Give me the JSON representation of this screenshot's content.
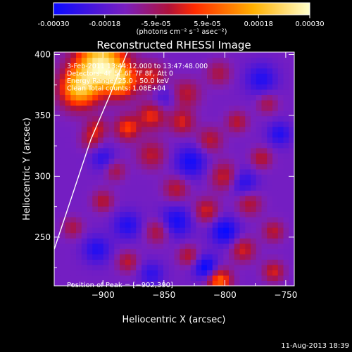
{
  "colorbar": {
    "tick_labels": [
      "-0.00030",
      "-0.00018",
      "-5.9e-05",
      "5.9e-05",
      "0.00018",
      "0.00030"
    ],
    "unit_label": "(photons cm⁻² s⁻¹ asec⁻²)",
    "range": [
      -0.0003,
      0.0003
    ],
    "colors": [
      "#0a0aff",
      "#7a1fbf",
      "#b0123a",
      "#ff2a00",
      "#ffb000",
      "#ffffcc"
    ]
  },
  "chart_data": {
    "type": "heatmap",
    "title": "Reconstructed RHESSI Image",
    "xlabel": "Heliocentric X (arcsec)",
    "ylabel": "Heliocentric Y (arcsec)",
    "xlim": [
      -940,
      -743
    ],
    "ylim": [
      210,
      402
    ],
    "x_ticks": [
      -900,
      -850,
      -800,
      -750
    ],
    "x_tick_labels": [
      "−900",
      "−850",
      "−800",
      "−750"
    ],
    "y_ticks": [
      250,
      300,
      350,
      400
    ],
    "y_tick_labels": [
      "250",
      "300",
      "350",
      "400"
    ],
    "annotations": [
      "3-Feb-2011 13:44:12.000 to 13:47:48.000",
      "Detectors: 4F 5F 6F 7F 8F, Att 0",
      "Energy Range: 25.0 - 50.0 keV",
      "Clean    Total counts: 1.08E+04"
    ],
    "peak_label": "Position of Peak = [−902,390]",
    "peak_position": [
      -902,
      390
    ],
    "limb_line": [
      [
        -940,
        240
      ],
      [
        -925,
        285
      ],
      [
        -910,
        330
      ],
      [
        -895,
        365
      ],
      [
        -880,
        402
      ]
    ],
    "blobs": [
      {
        "x": -902,
        "y": 392,
        "v": 1.0,
        "s": 14
      },
      {
        "x": -920,
        "y": 372,
        "v": 0.75,
        "s": 11
      },
      {
        "x": -885,
        "y": 378,
        "v": 0.6,
        "s": 9
      },
      {
        "x": -860,
        "y": 382,
        "v": 0.35,
        "s": 8
      },
      {
        "x": -832,
        "y": 368,
        "v": 0.3,
        "s": 8
      },
      {
        "x": -805,
        "y": 385,
        "v": 0.25,
        "s": 7
      },
      {
        "x": -860,
        "y": 350,
        "v": 0.4,
        "s": 8
      },
      {
        "x": -880,
        "y": 340,
        "v": 0.45,
        "s": 7
      },
      {
        "x": -905,
        "y": 340,
        "v": 0.3,
        "s": 6
      },
      {
        "x": -835,
        "y": 345,
        "v": 0.35,
        "s": 7
      },
      {
        "x": -812,
        "y": 330,
        "v": 0.3,
        "s": 7
      },
      {
        "x": -790,
        "y": 345,
        "v": 0.3,
        "s": 6
      },
      {
        "x": -765,
        "y": 360,
        "v": 0.25,
        "s": 6
      },
      {
        "x": -860,
        "y": 318,
        "v": 0.3,
        "s": 8
      },
      {
        "x": -890,
        "y": 305,
        "v": 0.25,
        "s": 6
      },
      {
        "x": -800,
        "y": 300,
        "v": 0.35,
        "s": 8
      },
      {
        "x": -770,
        "y": 315,
        "v": 0.3,
        "s": 6
      },
      {
        "x": -840,
        "y": 290,
        "v": 0.3,
        "s": 7
      },
      {
        "x": -815,
        "y": 272,
        "v": 0.35,
        "s": 7
      },
      {
        "x": -780,
        "y": 278,
        "v": 0.3,
        "s": 7
      },
      {
        "x": -900,
        "y": 280,
        "v": 0.3,
        "s": 6
      },
      {
        "x": -925,
        "y": 258,
        "v": 0.25,
        "s": 6
      },
      {
        "x": -855,
        "y": 255,
        "v": 0.3,
        "s": 7
      },
      {
        "x": -830,
        "y": 235,
        "v": 0.3,
        "s": 6
      },
      {
        "x": -785,
        "y": 240,
        "v": 0.35,
        "s": 7
      },
      {
        "x": -760,
        "y": 255,
        "v": 0.3,
        "s": 6
      },
      {
        "x": -880,
        "y": 230,
        "v": 0.3,
        "s": 6
      },
      {
        "x": -805,
        "y": 215,
        "v": 0.6,
        "s": 7
      },
      {
        "x": -760,
        "y": 222,
        "v": 0.35,
        "s": 6
      },
      {
        "x": -910,
        "y": 330,
        "v": 0.25,
        "s": 6
      },
      {
        "x": -828,
        "y": 312,
        "v": -0.35,
        "s": 9
      },
      {
        "x": -770,
        "y": 380,
        "v": -0.3,
        "s": 9
      },
      {
        "x": -785,
        "y": 295,
        "v": -0.3,
        "s": 8
      },
      {
        "x": -840,
        "y": 263,
        "v": -0.35,
        "s": 9
      },
      {
        "x": -800,
        "y": 255,
        "v": -0.4,
        "s": 8
      },
      {
        "x": -815,
        "y": 225,
        "v": -0.45,
        "s": 7
      },
      {
        "x": -880,
        "y": 260,
        "v": -0.3,
        "s": 8
      },
      {
        "x": -905,
        "y": 240,
        "v": -0.3,
        "s": 8
      },
      {
        "x": -860,
        "y": 220,
        "v": -0.25,
        "s": 7
      },
      {
        "x": -850,
        "y": 365,
        "v": -0.2,
        "s": 7
      },
      {
        "x": -900,
        "y": 315,
        "v": -0.25,
        "s": 7
      },
      {
        "x": -755,
        "y": 335,
        "v": -0.3,
        "s": 7
      }
    ]
  },
  "footer": {
    "timestamp": "11-Aug-2013 18:39"
  }
}
